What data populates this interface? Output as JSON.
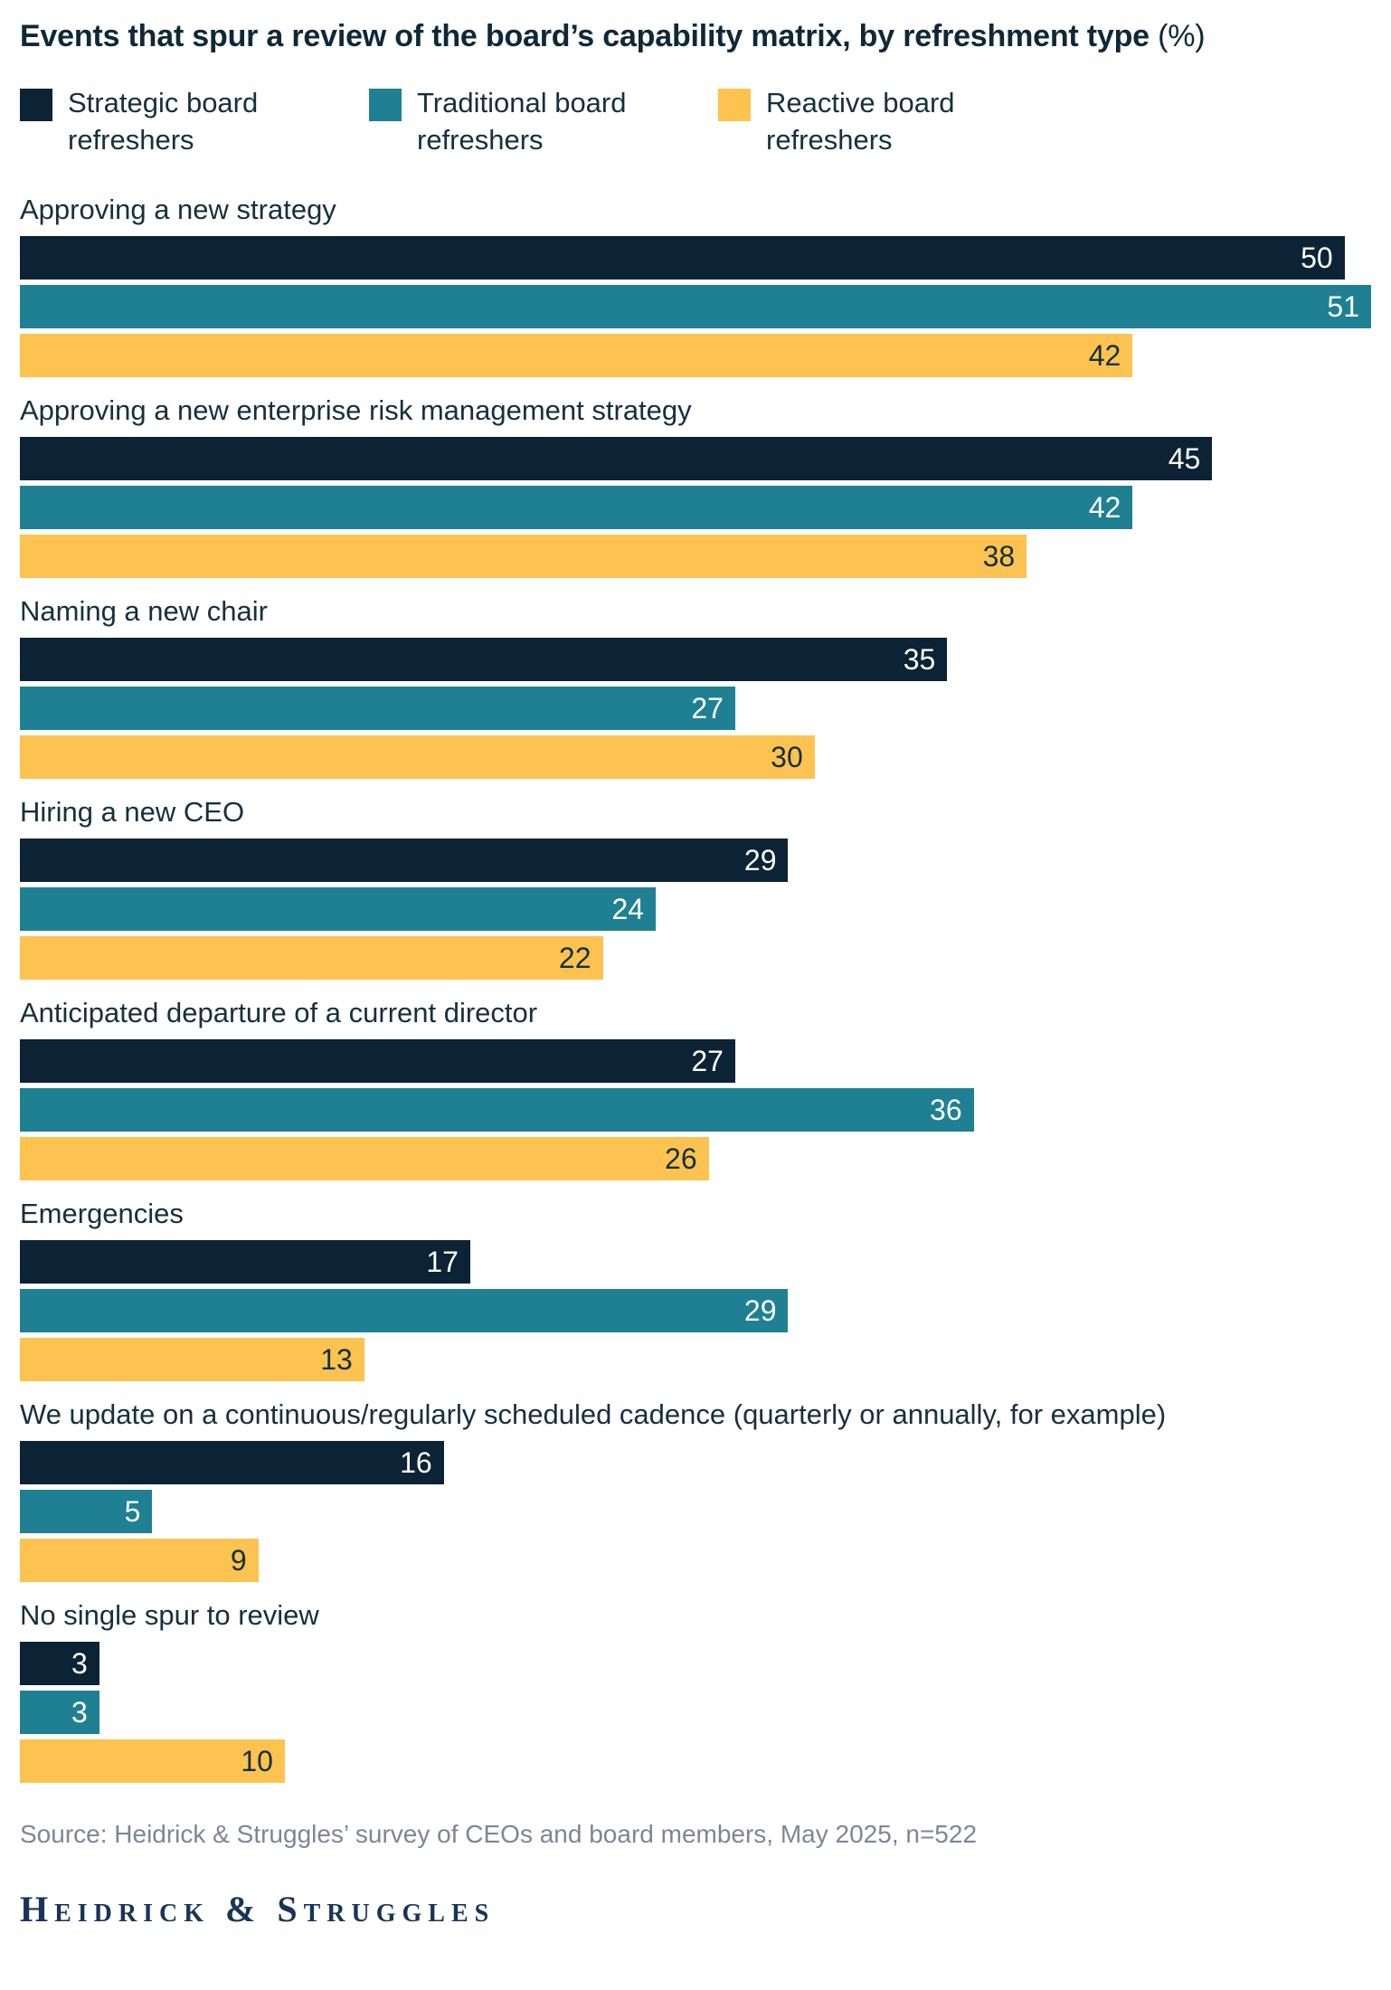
{
  "title": {
    "main": "Events that spur a review of the board’s capability matrix, by refreshment type",
    "suffix": "(%)"
  },
  "colors": {
    "strategic_navy": "#0b2334",
    "traditional_teal": "#1f8093",
    "reactive_yellow": "#fdc351",
    "text_navy": "#15303e",
    "source_gray": "#7d8694",
    "logo_navy": "#183457"
  },
  "legend": {
    "items": [
      {
        "label": "Strategic board refreshers",
        "color": "#0b2334"
      },
      {
        "label": "Traditional board refreshers",
        "color": "#1f8093"
      },
      {
        "label": "Reactive board refreshers",
        "color": "#fdc351"
      }
    ]
  },
  "chart_data": {
    "type": "bar",
    "orientation": "horizontal",
    "title": "Events that spur a review of the board’s capability matrix, by refreshment type (%)",
    "xlim": [
      0,
      51
    ],
    "value_unit": "percent",
    "grid": false,
    "legend_position": "top",
    "categories": [
      "Approving a new strategy",
      "Approving a new enterprise risk management strategy",
      "Naming a new chair",
      "Hiring a new CEO",
      "Anticipated departure of a current director",
      "Emergencies",
      "We update on a continuous/regularly scheduled cadence (quarterly or annually, for example)",
      "No single spur to review"
    ],
    "series": [
      {
        "name": "Strategic board refreshers",
        "color": "#0b2334",
        "value_label_color": "#ffffff",
        "values": [
          50,
          45,
          35,
          29,
          27,
          17,
          16,
          3
        ]
      },
      {
        "name": "Traditional board refreshers",
        "color": "#1f8093",
        "value_label_color": "#ffffff",
        "values": [
          51,
          42,
          27,
          24,
          36,
          29,
          5,
          3
        ]
      },
      {
        "name": "Reactive board refreshers",
        "color": "#fdc351",
        "value_label_color": "#15303e",
        "values": [
          42,
          38,
          30,
          22,
          26,
          13,
          9,
          10
        ]
      }
    ]
  },
  "source": "Source: Heidrick & Struggles’ survey of CEOs and board members, May 2025, n=522",
  "logo": {
    "text": "Heidrick & Struggles"
  }
}
